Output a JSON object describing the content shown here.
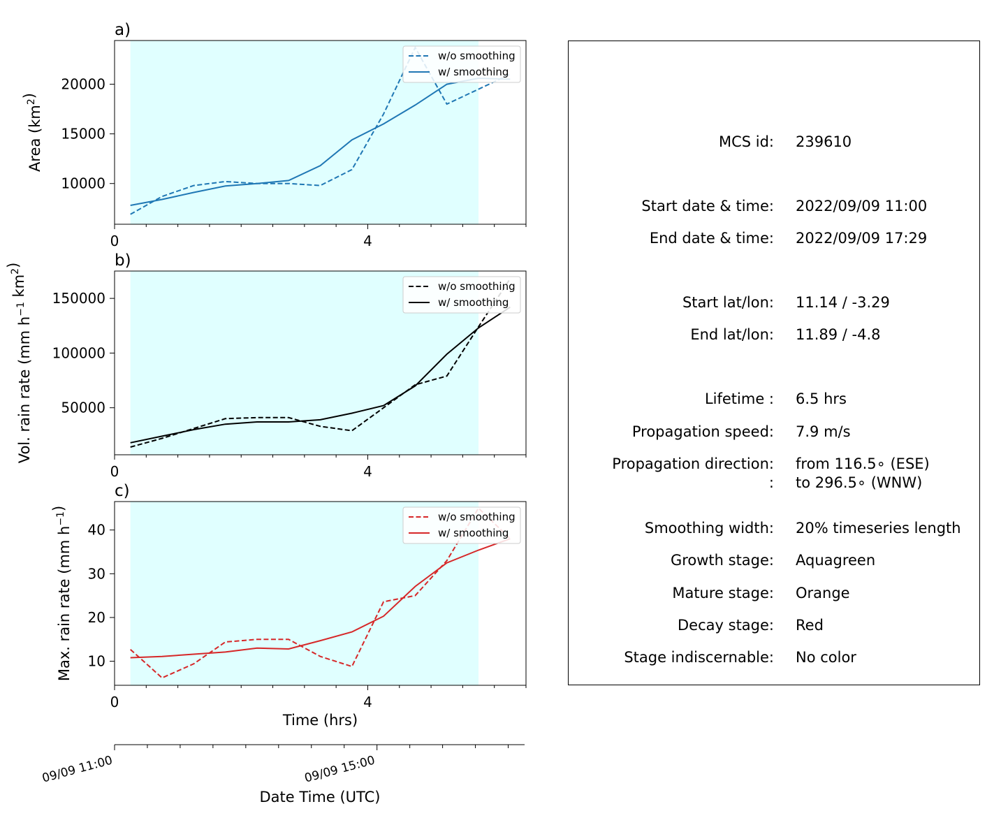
{
  "chart_data": [
    {
      "type": "line",
      "panel_label": "a)",
      "ylabel": "Area  (km²)",
      "xlabel": "",
      "xlim": [
        0,
        6.5
      ],
      "ylim": [
        5900,
        24400
      ],
      "x_ticks": [
        "0",
        "4"
      ],
      "y_ticks": [
        "10000",
        "15000",
        "20000"
      ],
      "shaded_span": [
        0.25,
        5.75
      ],
      "shade_color": "#e0ffff",
      "legend_position": "upper right",
      "series": [
        {
          "name": "w/o smoothing",
          "style": "dashed",
          "color": "#1f77b4",
          "x": [
            0.25,
            0.75,
            1.25,
            1.75,
            2.25,
            2.75,
            3.25,
            3.75,
            4.25,
            4.75,
            5.25,
            5.75,
            6.25
          ],
          "y": [
            6900,
            8700,
            9800,
            10200,
            10000,
            10000,
            9800,
            11400,
            17000,
            23700,
            18000,
            19500,
            21000
          ]
        },
        {
          "name": "w/ smoothing",
          "style": "solid",
          "color": "#1f77b4",
          "x": [
            0.25,
            0.75,
            1.25,
            1.75,
            2.25,
            2.75,
            3.25,
            3.75,
            4.25,
            4.75,
            5.25,
            5.75,
            6.25
          ],
          "y": [
            7800,
            8400,
            9100,
            9750,
            10000,
            10300,
            11800,
            14400,
            16000,
            17900,
            20000,
            20600,
            20500
          ]
        }
      ]
    },
    {
      "type": "line",
      "panel_label": "b)",
      "ylabel": "Vol. rain rate (mm h⁻¹ km²)",
      "xlabel": "",
      "xlim": [
        0,
        6.5
      ],
      "ylim": [
        7000,
        175000
      ],
      "x_ticks": [
        "0",
        "4"
      ],
      "y_ticks": [
        "50000",
        "100000",
        "150000"
      ],
      "shaded_span": [
        0.25,
        5.75
      ],
      "shade_color": "#e0ffff",
      "legend_position": "upper right",
      "series": [
        {
          "name": "w/o smoothing",
          "style": "dashed",
          "color": "#000000",
          "x": [
            0.25,
            0.75,
            1.25,
            1.75,
            2.25,
            2.75,
            3.25,
            3.75,
            4.25,
            4.75,
            5.25,
            5.75,
            6.25
          ],
          "y": [
            14000,
            22000,
            31000,
            40000,
            41000,
            41000,
            33000,
            29000,
            50000,
            71000,
            79000,
            124000,
            168000
          ]
        },
        {
          "name": "w/ smoothing",
          "style": "solid",
          "color": "#000000",
          "x": [
            0.25,
            0.75,
            1.25,
            1.75,
            2.25,
            2.75,
            3.25,
            3.75,
            4.25,
            4.75,
            5.25,
            5.75,
            6.25
          ],
          "y": [
            18000,
            24000,
            30000,
            35000,
            37000,
            37000,
            39000,
            45000,
            52000,
            70000,
            99000,
            123000,
            142000
          ]
        }
      ]
    },
    {
      "type": "line",
      "panel_label": "c)",
      "ylabel": "Max. rain rate  (mm h⁻¹)",
      "xlabel": "Time (hrs)",
      "xlim": [
        0,
        6.5
      ],
      "ylim": [
        4.5,
        46.5
      ],
      "x_ticks": [
        "0",
        "4"
      ],
      "y_ticks": [
        "10",
        "20",
        "30",
        "40"
      ],
      "shaded_span": [
        0.25,
        5.75
      ],
      "shade_color": "#e0ffff",
      "legend_position": "upper right",
      "series": [
        {
          "name": "w/o smoothing",
          "style": "dashed",
          "color": "#d62728",
          "x": [
            0.25,
            0.75,
            1.25,
            1.75,
            2.25,
            2.75,
            3.25,
            3.75,
            4.25,
            4.75,
            5.25,
            5.75,
            6.25
          ],
          "y": [
            12.7,
            6.2,
            9.4,
            14.4,
            15.0,
            15.0,
            11.1,
            8.8,
            23.6,
            25.0,
            33.0,
            45.0,
            38.0
          ]
        },
        {
          "name": "w/ smoothing",
          "style": "solid",
          "color": "#d62728",
          "x": [
            0.25,
            0.75,
            1.25,
            1.75,
            2.25,
            2.75,
            3.25,
            3.75,
            4.25,
            4.75,
            5.25,
            5.75,
            6.25
          ],
          "y": [
            10.8,
            11.1,
            11.6,
            12.1,
            13.0,
            12.8,
            14.7,
            16.7,
            20.3,
            27.1,
            32.5,
            35.4,
            38.0
          ]
        }
      ]
    },
    {
      "type": "axis",
      "xlabel": "Date Time (UTC)",
      "x_ticks": [
        {
          "label": "09/09 11:00",
          "value": "2022-09-09 11:00"
        },
        {
          "label": "09/09 15:00",
          "value": "2022-09-09 15:00"
        }
      ],
      "xlim": [
        "2022-09-09 11:00",
        "2022-09-09 17:15"
      ]
    }
  ],
  "info_panel": {
    "rows": [
      {
        "label": "MCS id:",
        "value": "239610"
      },
      {
        "label": "Start date & time:",
        "value": "2022/09/09 11:00"
      },
      {
        "label": "End date & time:",
        "value": "2022/09/09 17:29"
      },
      {
        "label": "Start lat/lon:",
        "value": "11.14 / -3.29"
      },
      {
        "label": "End lat/lon:",
        "value": "11.89 / -4.8"
      },
      {
        "label": "Lifetime :",
        "value": "6.5 hrs"
      },
      {
        "label": "Propagation speed:",
        "value": "7.9 m/s"
      },
      {
        "label": "Propagation direction:",
        "value": "from 116.5∘ (ESE)"
      },
      {
        "label": ":",
        "value": "to   296.5∘ (WNW)"
      },
      {
        "label": "Smoothing width:",
        "value": "20% timeseries length"
      },
      {
        "label": "Growth stage:",
        "value": "Aquagreen"
      },
      {
        "label": "Mature stage:",
        "value": "Orange"
      },
      {
        "label": "Decay stage:",
        "value": "Red"
      },
      {
        "label": "Stage indiscernable:",
        "value": "No color"
      }
    ]
  }
}
